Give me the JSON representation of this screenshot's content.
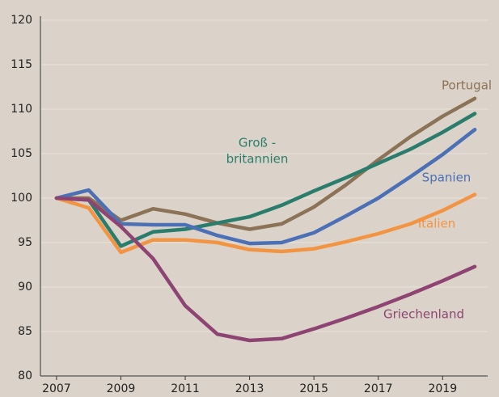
{
  "chart_data": {
    "type": "line",
    "x": [
      2007,
      2008,
      2009,
      2010,
      2011,
      2012,
      2013,
      2014,
      2015,
      2016,
      2017,
      2018,
      2019,
      2020
    ],
    "series": [
      {
        "name": "Portugal",
        "color": "#8c7257",
        "values": [
          100,
          100,
          97.5,
          98.8,
          98.2,
          97.2,
          96.5,
          97.1,
          99,
          101.5,
          104.3,
          106.9,
          109.2,
          111.2
        ]
      },
      {
        "name": [
          "Groß -",
          "britannien"
        ],
        "color": "#2a7d6c",
        "values": [
          100,
          99.8,
          94.6,
          96.2,
          96.5,
          97.2,
          97.9,
          99.2,
          100.8,
          102.3,
          103.9,
          105.5,
          107.4,
          109.5
        ]
      },
      {
        "name": "Spanien",
        "color": "#4b70b6",
        "values": [
          100,
          100.9,
          97.1,
          97,
          97,
          95.8,
          94.9,
          95,
          96.1,
          98,
          100,
          102.4,
          104.9,
          107.7
        ]
      },
      {
        "name": "Italien",
        "color": "#f39443",
        "values": [
          100,
          98.9,
          93.9,
          95.3,
          95.3,
          95,
          94.2,
          94,
          94.3,
          95.1,
          96,
          97.1,
          98.6,
          100.4
        ]
      },
      {
        "name": "Griechenland",
        "color": "#8e4473",
        "values": [
          100,
          99.8,
          96.8,
          93.2,
          87.9,
          84.7,
          84,
          84.2,
          85.3,
          86.5,
          87.8,
          89.2,
          90.7,
          92.3
        ]
      }
    ],
    "xlim": [
      2006.5,
      2020.4
    ],
    "xticks": [
      2007,
      2009,
      2011,
      2013,
      2015,
      2017,
      2019
    ],
    "ylim": [
      80,
      120
    ],
    "yticks": [
      80,
      85,
      90,
      95,
      100,
      105,
      110,
      115,
      120
    ],
    "grid": true
  }
}
